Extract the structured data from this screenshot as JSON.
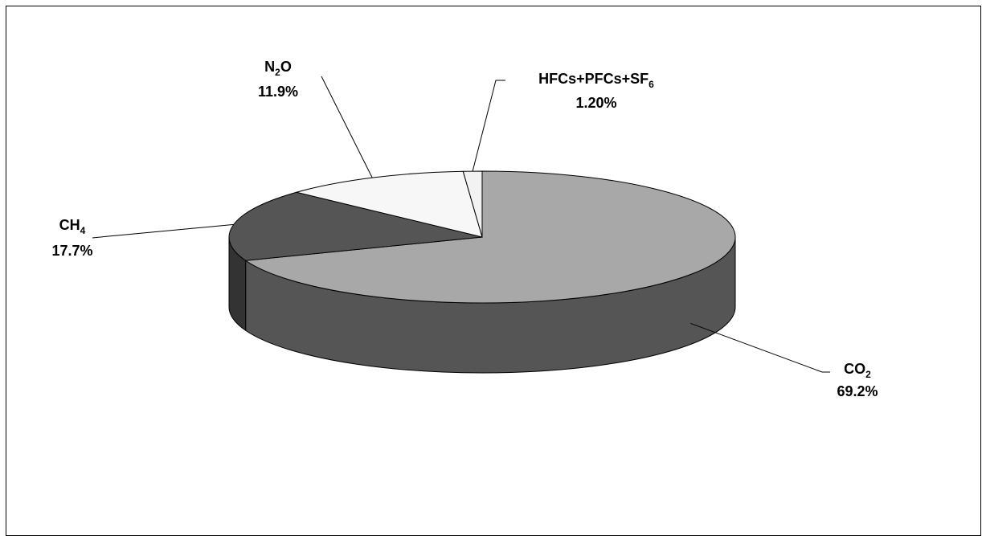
{
  "chart_data": {
    "type": "pie",
    "style": "3d",
    "slices": [
      {
        "name": "CO",
        "sub": "2",
        "suffix": "",
        "value_text": "69.2%",
        "value": 69.2,
        "color": "#a8a8a8",
        "side_color": "#555555"
      },
      {
        "name": "CH",
        "sub": "4",
        "suffix": "",
        "value_text": "17.7%",
        "value": 17.7,
        "color": "#555555",
        "side_color": "#333333"
      },
      {
        "name": "N",
        "sub": "2",
        "suffix": "O",
        "value_text": "11.9%",
        "value": 11.9,
        "color": "#f7f7f7",
        "side_color": "#cfcfcf"
      },
      {
        "name": "HFCs+PFCs+SF",
        "sub": "6",
        "suffix": "",
        "value_text": "1.20%",
        "value": 1.2,
        "color": "#f2f2f2",
        "side_color": "#cccccc"
      }
    ]
  }
}
